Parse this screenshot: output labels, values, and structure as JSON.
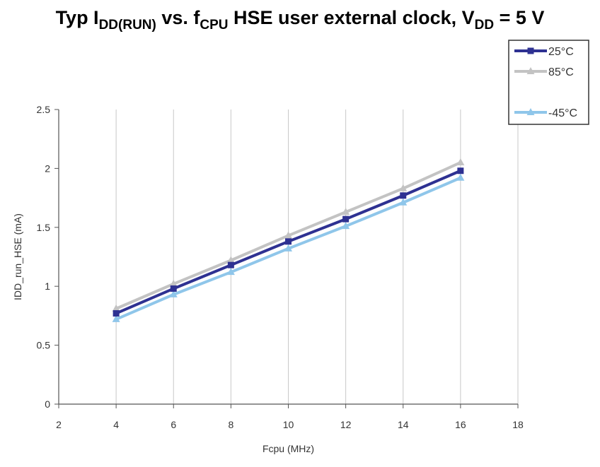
{
  "title": {
    "p1": "Typ I",
    "s1": "DD(RUN)",
    "p2": " vs. f",
    "s2": "CPU",
    "p3": " HSE user external clock, V",
    "s3": "DD",
    "p4": " = 5 V"
  },
  "chart_data": {
    "type": "line",
    "xlabel": "Fcpu (MHz)",
    "ylabel": "IDD_run_HSE (mA)",
    "xlim": [
      2,
      18
    ],
    "ylim": [
      0,
      2.5
    ],
    "x_ticks": [
      2,
      4,
      6,
      8,
      10,
      12,
      14,
      16,
      18
    ],
    "y_ticks": [
      0,
      0.5,
      1,
      1.5,
      2,
      2.5
    ],
    "y_tick_labels": [
      "0",
      "0.5",
      "1",
      "1.5",
      "2",
      "2.5"
    ],
    "grid": "vertical",
    "legend_position": "top-right",
    "x": [
      4,
      6,
      8,
      10,
      12,
      14,
      16
    ],
    "series": [
      {
        "name": "25°C",
        "color": "#2e3192",
        "marker": "square",
        "values": [
          0.77,
          0.98,
          1.18,
          1.38,
          1.57,
          1.77,
          1.98
        ]
      },
      {
        "name": "85°C",
        "color": "#c3c3c3",
        "marker": "triangle",
        "values": [
          0.81,
          1.02,
          1.22,
          1.43,
          1.63,
          1.83,
          2.05
        ]
      },
      {
        "name": "-45°C",
        "color": "#8fc6ea",
        "marker": "triangle",
        "values": [
          0.72,
          0.93,
          1.12,
          1.32,
          1.51,
          1.71,
          1.92
        ]
      }
    ]
  }
}
